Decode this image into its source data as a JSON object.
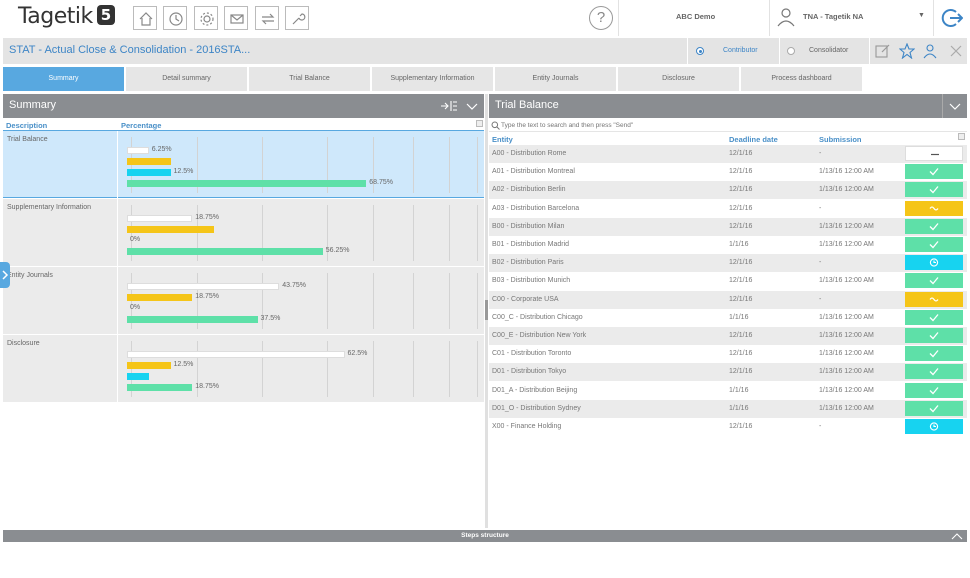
{
  "app": {
    "logo_text": "Tagetik",
    "logo_version": "5",
    "help_label": "?"
  },
  "header": {
    "environment": "ABC Demo",
    "user": "TNA - Tagetik NA",
    "user_caret": "▼"
  },
  "titlebar": {
    "title": "STAT - Actual Close & Consolidation - 2016STA...",
    "roles": [
      {
        "label": "Contributor",
        "selected": true
      },
      {
        "label": "Consolidator",
        "selected": false
      }
    ]
  },
  "tabs": [
    {
      "label": "Summary",
      "active": true
    },
    {
      "label": "Detail summary"
    },
    {
      "label": "Trial Balance"
    },
    {
      "label": "Supplementary Information"
    },
    {
      "label": "Entity Journals"
    },
    {
      "label": "Disclosure"
    },
    {
      "label": "Process dashboard"
    }
  ],
  "summary": {
    "title": "Summary",
    "columns": [
      "Description",
      "Percentage"
    ],
    "rows": [
      {
        "label": "Trial Balance",
        "selected": true,
        "bars": [
          {
            "color": "white",
            "value": 6.25,
            "label": "6.25%"
          },
          {
            "color": "yellow",
            "value": 12.5,
            "label": ""
          },
          {
            "color": "cyan",
            "value": 12.5,
            "label": "12.5%"
          },
          {
            "color": "green",
            "value": 68.75,
            "label": "68.75%"
          }
        ]
      },
      {
        "label": "Supplementary Information",
        "bars": [
          {
            "color": "white",
            "value": 18.75,
            "label": "18.75%"
          },
          {
            "color": "yellow",
            "value": 25,
            "label": ""
          },
          {
            "color": "cyan",
            "value": 0,
            "label": "0%"
          },
          {
            "color": "green",
            "value": 56.25,
            "label": "56.25%"
          }
        ]
      },
      {
        "label": "Entity Journals",
        "bars": [
          {
            "color": "white",
            "value": 43.75,
            "label": "43.75%"
          },
          {
            "color": "yellow",
            "value": 18.75,
            "label": "18.75%"
          },
          {
            "color": "cyan",
            "value": 0,
            "label": "0%"
          },
          {
            "color": "green",
            "value": 37.5,
            "label": "37.5%"
          }
        ]
      },
      {
        "label": "Disclosure",
        "bars": [
          {
            "color": "white",
            "value": 62.5,
            "label": "62.5%"
          },
          {
            "color": "yellow",
            "value": 12.5,
            "label": "12.5%"
          },
          {
            "color": "cyan",
            "value": 6.25,
            "label": ""
          },
          {
            "color": "green",
            "value": 18.75,
            "label": "18.75%"
          }
        ]
      }
    ]
  },
  "trial_balance": {
    "title": "Trial Balance",
    "search_placeholder": "Type the text to search and then press \"Send\"",
    "columns": [
      "Entity",
      "Deadline date",
      "Submission"
    ],
    "rows": [
      {
        "entity": "A00 - Distribution Rome",
        "deadline": "12/1/16",
        "submission": "-",
        "status": "empty"
      },
      {
        "entity": "A01 - Distribution Montreal",
        "deadline": "12/1/16",
        "submission": "1/13/16 12:00 AM",
        "status": "green"
      },
      {
        "entity": "A02 - Distribution Berlin",
        "deadline": "12/1/16",
        "submission": "1/13/16 12:00 AM",
        "status": "green"
      },
      {
        "entity": "A03 - Distribution Barcelona",
        "deadline": "12/1/16",
        "submission": "-",
        "status": "yellow"
      },
      {
        "entity": "B00 - Distribution Milan",
        "deadline": "12/1/16",
        "submission": "1/13/16 12:00 AM",
        "status": "green"
      },
      {
        "entity": "B01 - Distribution Madrid",
        "deadline": "1/1/16",
        "submission": "1/13/16 12:00 AM",
        "status": "green"
      },
      {
        "entity": "B02 - Distribution Paris",
        "deadline": "12/1/16",
        "submission": "-",
        "status": "cyan"
      },
      {
        "entity": "B03 - Distribution Munich",
        "deadline": "12/1/16",
        "submission": "1/13/16 12:00 AM",
        "status": "green"
      },
      {
        "entity": "C00 - Corporate USA",
        "deadline": "12/1/16",
        "submission": "-",
        "status": "yellow"
      },
      {
        "entity": "C00_C - Distribution Chicago",
        "deadline": "1/1/16",
        "submission": "1/13/16 12:00 AM",
        "status": "green"
      },
      {
        "entity": "C00_E - Distribution New York",
        "deadline": "12/1/16",
        "submission": "1/13/16 12:00 AM",
        "status": "green"
      },
      {
        "entity": "C01 - Distribution Toronto",
        "deadline": "12/1/16",
        "submission": "1/13/16 12:00 AM",
        "status": "green"
      },
      {
        "entity": "D01 - Distribution Tokyo",
        "deadline": "12/1/16",
        "submission": "1/13/16 12:00 AM",
        "status": "green"
      },
      {
        "entity": "D01_A - Distribution Beijing",
        "deadline": "1/1/16",
        "submission": "1/13/16 12:00 AM",
        "status": "green"
      },
      {
        "entity": "D01_O - Distribution Sydney",
        "deadline": "1/1/16",
        "submission": "1/13/16 12:00 AM",
        "status": "green"
      },
      {
        "entity": "X00 - Finance Holding",
        "deadline": "12/1/16",
        "submission": "-",
        "status": "cyan"
      }
    ]
  },
  "footer": {
    "steps_label": "Steps structure"
  },
  "colors": {
    "accent": "#3d85c6",
    "tab_active": "#58a8e0",
    "panel_header": "#8a8d91",
    "status_green": "#5ee0a8",
    "status_yellow": "#f5c518",
    "status_cyan": "#17d3f0",
    "selected_row": "#cfe8fb"
  }
}
